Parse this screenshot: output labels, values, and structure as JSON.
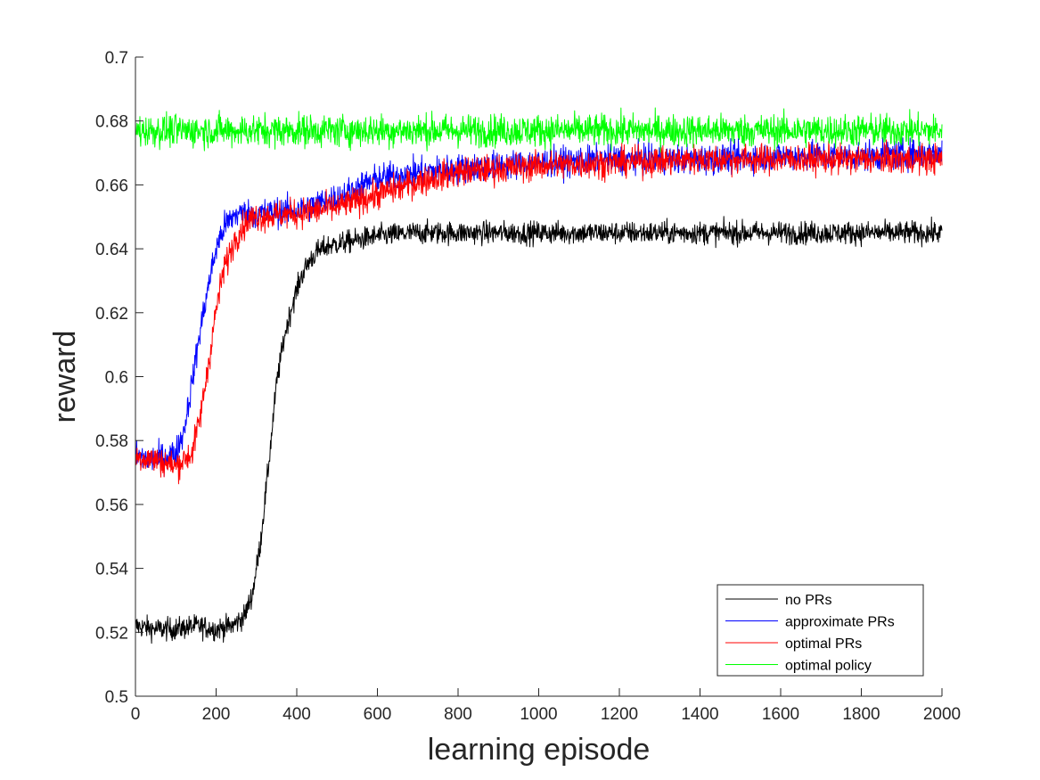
{
  "chart_data": {
    "type": "line",
    "title": "",
    "xlabel": "learning episode",
    "ylabel": "reward",
    "xlim": [
      0,
      2000
    ],
    "ylim": [
      0.5,
      0.7
    ],
    "xticks": [
      0,
      200,
      400,
      600,
      800,
      1000,
      1200,
      1400,
      1600,
      1800,
      2000
    ],
    "yticks": [
      0.5,
      0.52,
      0.54,
      0.56,
      0.58,
      0.6,
      0.62,
      0.64,
      0.66,
      0.68,
      0.7
    ],
    "xtick_labels": [
      "0",
      "200",
      "400",
      "600",
      "800",
      "1000",
      "1200",
      "1400",
      "1600",
      "1800",
      "2000"
    ],
    "ytick_labels": [
      "0.5",
      "0.52",
      "0.54",
      "0.56",
      "0.58",
      "0.6",
      "0.62",
      "0.64",
      "0.66",
      "0.68",
      "0.7"
    ],
    "grid": false,
    "legend_position": "bottom-right",
    "series": [
      {
        "name": "no PRs",
        "color": "#000000",
        "noise": 0.0035,
        "x": [
          0,
          50,
          100,
          150,
          200,
          240,
          270,
          290,
          310,
          330,
          350,
          370,
          390,
          410,
          430,
          450,
          480,
          520,
          600,
          700,
          800,
          1000,
          1200,
          1400,
          1600,
          1800,
          2000
        ],
        "y": [
          0.522,
          0.521,
          0.521,
          0.522,
          0.521,
          0.522,
          0.525,
          0.532,
          0.548,
          0.572,
          0.598,
          0.613,
          0.623,
          0.631,
          0.636,
          0.639,
          0.641,
          0.642,
          0.644,
          0.645,
          0.645,
          0.645,
          0.645,
          0.645,
          0.645,
          0.645,
          0.645
        ]
      },
      {
        "name": "approximate PRs",
        "color": "#0000ff",
        "noise": 0.0045,
        "x": [
          0,
          50,
          100,
          120,
          140,
          160,
          180,
          200,
          220,
          250,
          300,
          400,
          500,
          600,
          700,
          800,
          900,
          1000,
          1200,
          1400,
          1600,
          1800,
          2000
        ],
        "y": [
          0.575,
          0.574,
          0.576,
          0.583,
          0.598,
          0.614,
          0.628,
          0.64,
          0.647,
          0.651,
          0.651,
          0.652,
          0.656,
          0.662,
          0.664,
          0.665,
          0.666,
          0.667,
          0.668,
          0.668,
          0.669,
          0.669,
          0.67
        ]
      },
      {
        "name": "optimal PRs",
        "color": "#ff0000",
        "noise": 0.0045,
        "x": [
          0,
          50,
          100,
          140,
          160,
          180,
          200,
          220,
          250,
          280,
          300,
          400,
          500,
          600,
          700,
          800,
          900,
          1000,
          1200,
          1400,
          1600,
          1800,
          2000
        ],
        "y": [
          0.575,
          0.574,
          0.572,
          0.576,
          0.587,
          0.603,
          0.621,
          0.634,
          0.644,
          0.649,
          0.65,
          0.651,
          0.653,
          0.657,
          0.661,
          0.664,
          0.665,
          0.666,
          0.667,
          0.668,
          0.668,
          0.668,
          0.668
        ]
      },
      {
        "name": "optimal policy",
        "color": "#00ff00",
        "noise": 0.005,
        "x": [
          0,
          500,
          1000,
          1500,
          2000
        ],
        "y": [
          0.677,
          0.677,
          0.677,
          0.677,
          0.677
        ]
      }
    ]
  }
}
